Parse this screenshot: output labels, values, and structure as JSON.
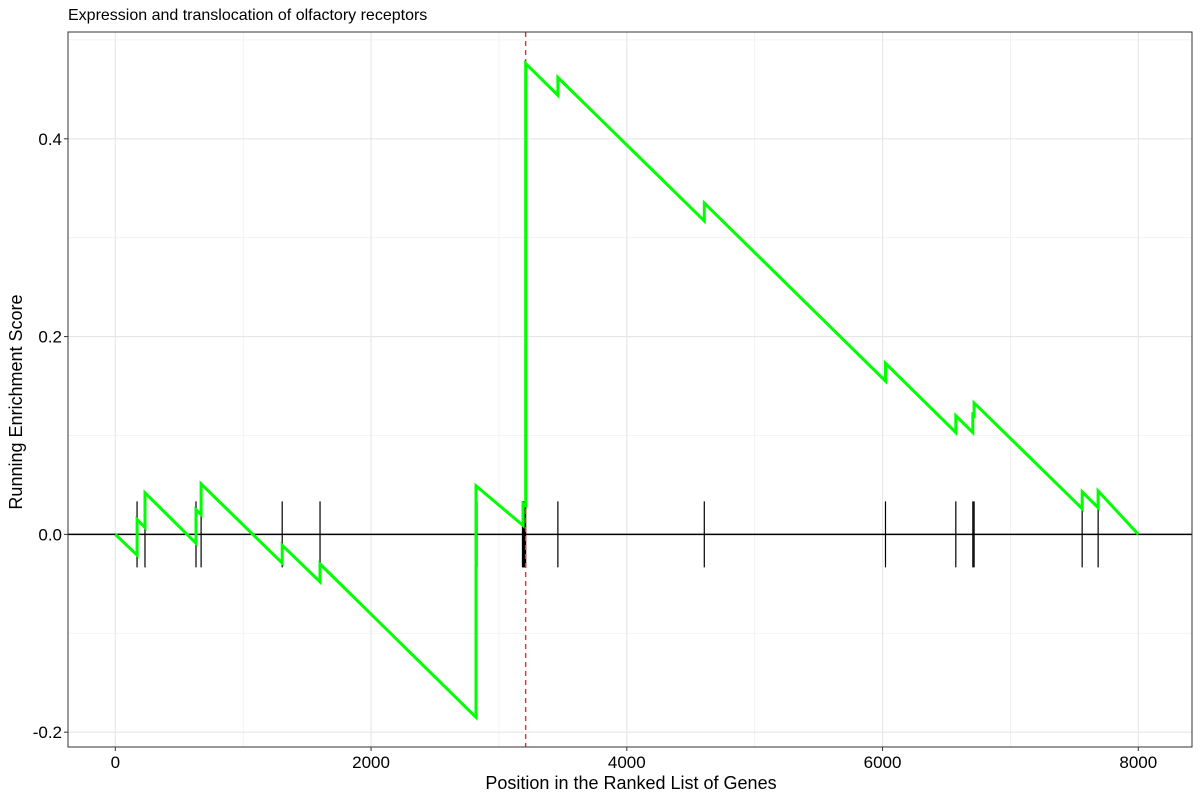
{
  "chart_data": {
    "type": "line",
    "title": "Expression and translocation of olfactory receptors",
    "xlabel": "Position in the Ranked List of Genes",
    "ylabel": "Running Enrichment Score",
    "xlim": [
      -370,
      8420
    ],
    "ylim": [
      -0.215,
      0.508
    ],
    "x_ticks": [
      0,
      2000,
      4000,
      6000,
      8000
    ],
    "x_tick_labels": [
      "0",
      "2000",
      "4000",
      "6000",
      "8000"
    ],
    "y_ticks": [
      -0.2,
      0.0,
      0.2,
      0.4
    ],
    "y_tick_labels": [
      "-0.2",
      "0.0",
      "0.2",
      "0.4"
    ],
    "grid": true,
    "series": [
      {
        "color": "#00ff00",
        "x": [
          0,
          170,
          170,
          232,
          232,
          631,
          631,
          671,
          671,
          1305,
          1305,
          1601,
          1601,
          2821,
          2821,
          3189,
          3189,
          3209,
          3209,
          3461,
          3461,
          4606,
          4606,
          6023,
          6023,
          6573,
          6573,
          6706,
          6706,
          6716,
          6716,
          7561,
          7561,
          7686,
          7686,
          8000
        ],
        "y": [
          0.0,
          -0.021,
          0.015,
          0.007,
          0.042,
          -0.009,
          0.025,
          0.02,
          0.051,
          -0.029,
          -0.011,
          -0.048,
          -0.03,
          -0.185,
          0.049,
          0.009,
          0.031,
          0.029,
          0.476,
          0.444,
          0.462,
          0.317,
          0.335,
          0.155,
          0.173,
          0.103,
          0.12,
          0.103,
          0.121,
          0.12,
          0.133,
          0.026,
          0.043,
          0.027,
          0.044,
          0.0
        ]
      }
    ],
    "gene_hits": [
      170,
      232,
      631,
      671,
      1305,
      1601,
      2821,
      2829,
      3184,
      3189,
      3194,
      3199,
      3204,
      3209,
      3461,
      4606,
      6023,
      6573,
      6706,
      6716,
      7561,
      7686
    ],
    "peak_marker": {
      "x": 3209,
      "color": "#e0303f",
      "style": "dashed"
    },
    "zero_line": {
      "y": 0.0,
      "color": "#000000"
    }
  }
}
